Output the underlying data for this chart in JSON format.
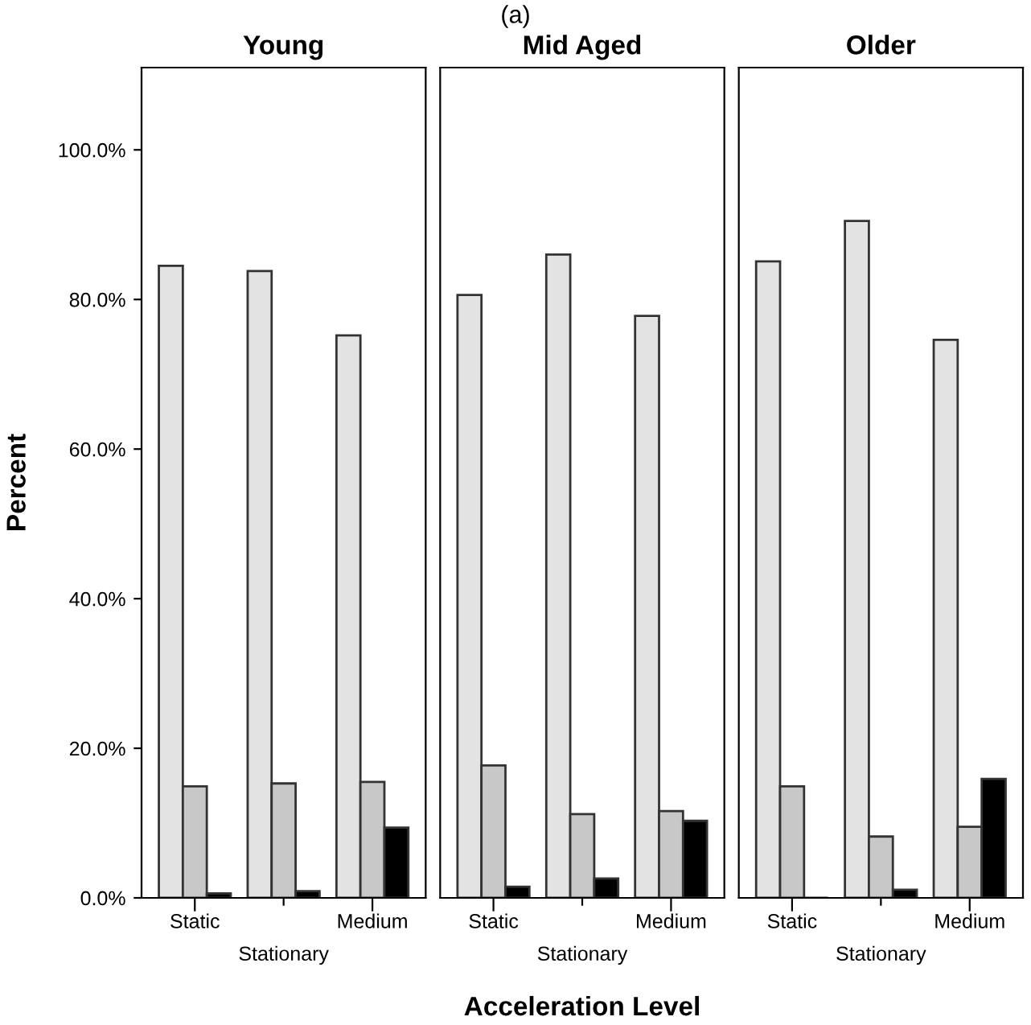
{
  "chart_data": [
    {
      "type": "bar",
      "title": "Young",
      "ylabel": "Percent",
      "annotations": [
        "(a)"
      ],
      "categories": [
        "Static",
        "Stationary",
        "Medium"
      ],
      "series": [
        {
          "color": "#e3e3e3",
          "values": [
            84.5,
            83.8,
            75.2
          ]
        },
        {
          "color": "#c8c8c8",
          "values": [
            14.9,
            15.3,
            15.5
          ]
        },
        {
          "color": "#000000",
          "values": [
            0.6,
            0.9,
            9.4
          ]
        }
      ],
      "ylim": [
        0,
        111
      ],
      "yticks": [
        {
          "value": 0,
          "label": "0.0%"
        },
        {
          "value": 20,
          "label": "20.0%"
        },
        {
          "value": 40,
          "label": "40.0%"
        },
        {
          "value": 60,
          "label": "60.0%"
        },
        {
          "value": 80,
          "label": "80.0%"
        },
        {
          "value": 100,
          "label": "100.0%"
        }
      ],
      "grid": false,
      "legend": false
    },
    {
      "type": "bar",
      "title": "Mid Aged",
      "xlabel": "Acceleration Level",
      "categories": [
        "Static",
        "Stationary",
        "Medium"
      ],
      "series": [
        {
          "color": "#e3e3e3",
          "values": [
            80.6,
            86.0,
            77.8
          ]
        },
        {
          "color": "#c8c8c8",
          "values": [
            17.7,
            11.2,
            11.6
          ]
        },
        {
          "color": "#000000",
          "values": [
            1.5,
            2.6,
            10.3
          ]
        }
      ],
      "ylim": [
        0,
        111
      ],
      "tick_labels": "x",
      "grid": false,
      "legend": false
    },
    {
      "type": "bar",
      "title": "Older",
      "categories": [
        "Static",
        "Stationary",
        "Medium"
      ],
      "series": [
        {
          "color": "#e3e3e3",
          "values": [
            85.1,
            90.5,
            74.6
          ]
        },
        {
          "color": "#c8c8c8",
          "values": [
            14.9,
            8.2,
            9.5
          ]
        },
        {
          "color": "#000000",
          "values": [
            null,
            1.1,
            15.9
          ]
        }
      ],
      "ylim": [
        0,
        111
      ],
      "tick_labels": "x",
      "grid": false,
      "legend": false
    }
  ]
}
